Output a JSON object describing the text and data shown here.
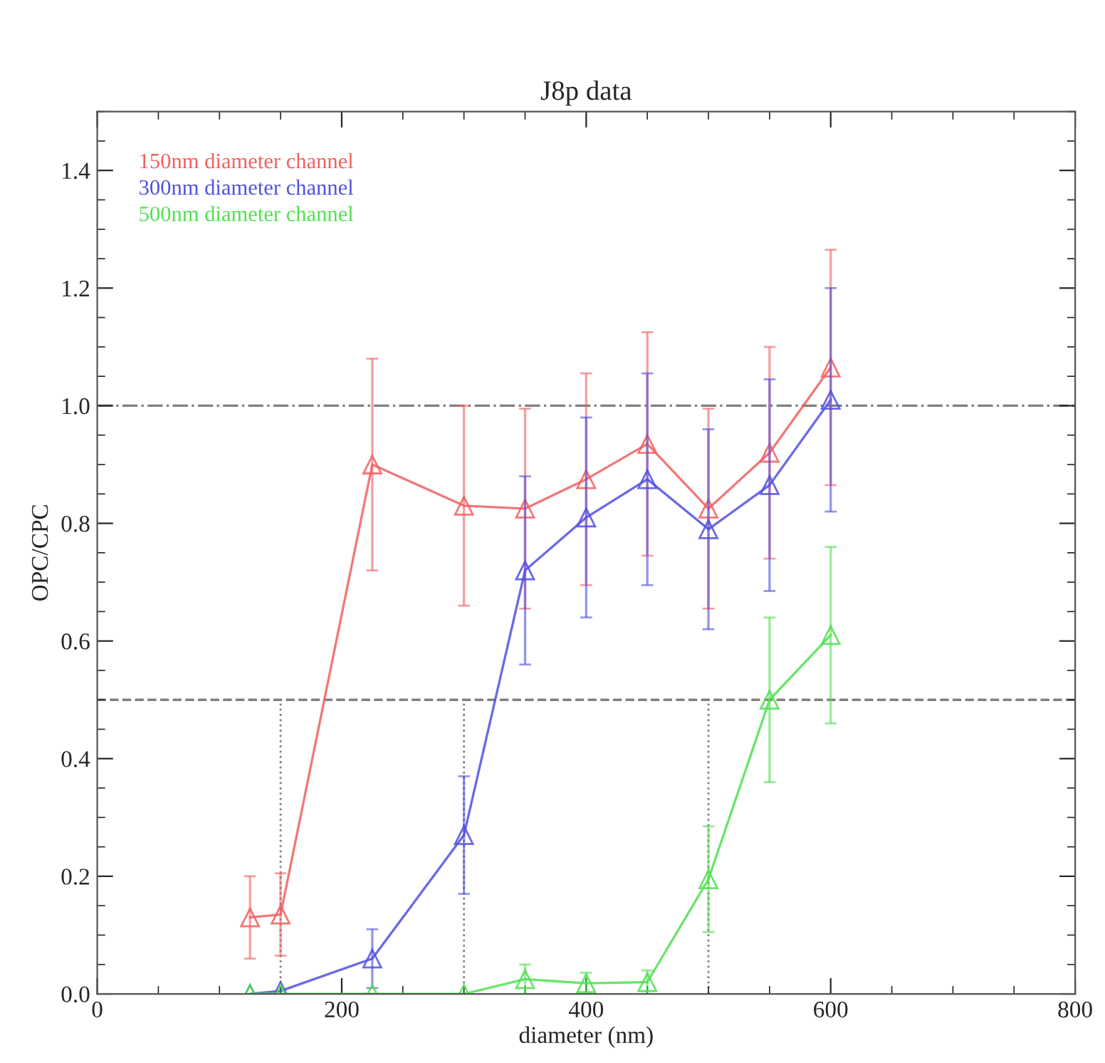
{
  "chart_data": {
    "type": "line",
    "title": "J8p data",
    "xlabel": "diameter (nm)",
    "ylabel": "OPC/CPC",
    "x": [
      125,
      150,
      225,
      300,
      350,
      400,
      450,
      500,
      550,
      600
    ],
    "series": [
      {
        "name": "150nm diameter channel",
        "color": "#f06060",
        "values": [
          0.13,
          0.135,
          0.9,
          0.83,
          0.825,
          0.875,
          0.935,
          0.825,
          0.92,
          1.065
        ],
        "errors": [
          0.07,
          0.07,
          0.18,
          0.17,
          0.17,
          0.18,
          0.19,
          0.17,
          0.18,
          0.2
        ]
      },
      {
        "name": "300nm diameter channel",
        "color": "#5050e0",
        "values": [
          0.0,
          0.005,
          0.06,
          0.27,
          0.72,
          0.81,
          0.875,
          0.79,
          0.865,
          1.01
        ],
        "errors": [
          null,
          null,
          0.05,
          0.1,
          0.16,
          0.17,
          0.18,
          0.17,
          0.18,
          0.19
        ]
      },
      {
        "name": "500nm diameter channel",
        "color": "#50e050",
        "values": [
          0.0,
          0.0,
          0.0,
          0.0,
          0.025,
          0.018,
          0.02,
          0.195,
          0.5,
          0.61
        ],
        "errors": [
          null,
          null,
          null,
          null,
          0.025,
          0.018,
          0.02,
          0.09,
          0.14,
          0.15
        ]
      }
    ],
    "xlim": [
      0,
      800
    ],
    "xticks": [
      0,
      200,
      400,
      600,
      800
    ],
    "ylim": [
      0,
      1.5
    ],
    "yticks": [
      {
        "value": 0,
        "label": "0.0"
      },
      {
        "value": 0.2,
        "label": "0.2"
      },
      {
        "value": 0.4,
        "label": "0.4"
      },
      {
        "value": 0.6,
        "label": "0.6"
      },
      {
        "value": 0.8,
        "label": "0.8"
      },
      {
        "value": 1.0,
        "label": "1.0"
      },
      {
        "value": 1.2,
        "label": "1.2"
      },
      {
        "value": 1.4,
        "label": "1.4"
      }
    ],
    "ref_lines": [
      {
        "axis": "y",
        "value": 1.0,
        "color": "#808080",
        "line_style": "dashdot"
      },
      {
        "axis": "y",
        "value": 0.5,
        "color": "#808080",
        "line_style": "dashed"
      },
      {
        "axis": "x",
        "value": 150,
        "color": "#808080",
        "line_style": "dotted"
      },
      {
        "axis": "x",
        "value": 300,
        "color": "#808080",
        "line_style": "dotted"
      },
      {
        "axis": "x",
        "value": 500,
        "color": "#808080",
        "line_style": "dotted"
      }
    ],
    "marker": "triangle",
    "line_style": "solid",
    "legend": "top left",
    "grid": false
  }
}
